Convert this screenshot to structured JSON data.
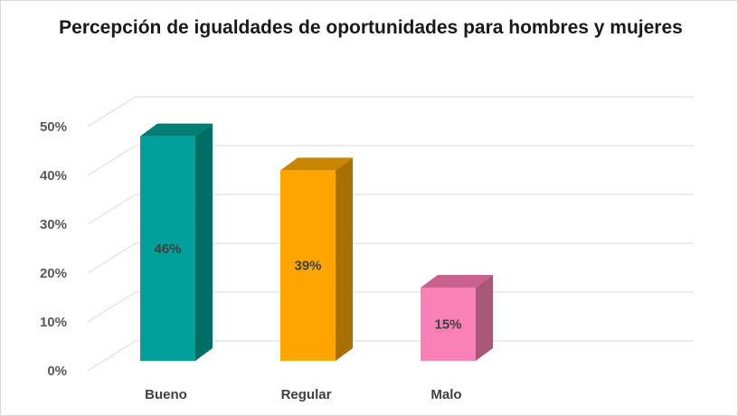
{
  "chart_data": {
    "type": "bar",
    "title": "Percepción de igualdades de oportunidades para hombres y mujeres",
    "categories": [
      "Bueno",
      "Regular",
      "Malo"
    ],
    "values": [
      46,
      39,
      15
    ],
    "data_labels": [
      "46%",
      "39%",
      "15%"
    ],
    "ylim": [
      0,
      50
    ],
    "yticks": [
      "0%",
      "10%",
      "20%",
      "30%",
      "40%",
      "50%"
    ],
    "grid": true,
    "legend": "none",
    "style": "3d-column",
    "colors": {
      "front": [
        "#00A09A",
        "#FFA600",
        "#F981B5"
      ],
      "side": [
        "#006E65",
        "#A86E00",
        "#A65874"
      ],
      "top": [
        "#007E76",
        "#C98600",
        "#C9638D"
      ]
    }
  }
}
